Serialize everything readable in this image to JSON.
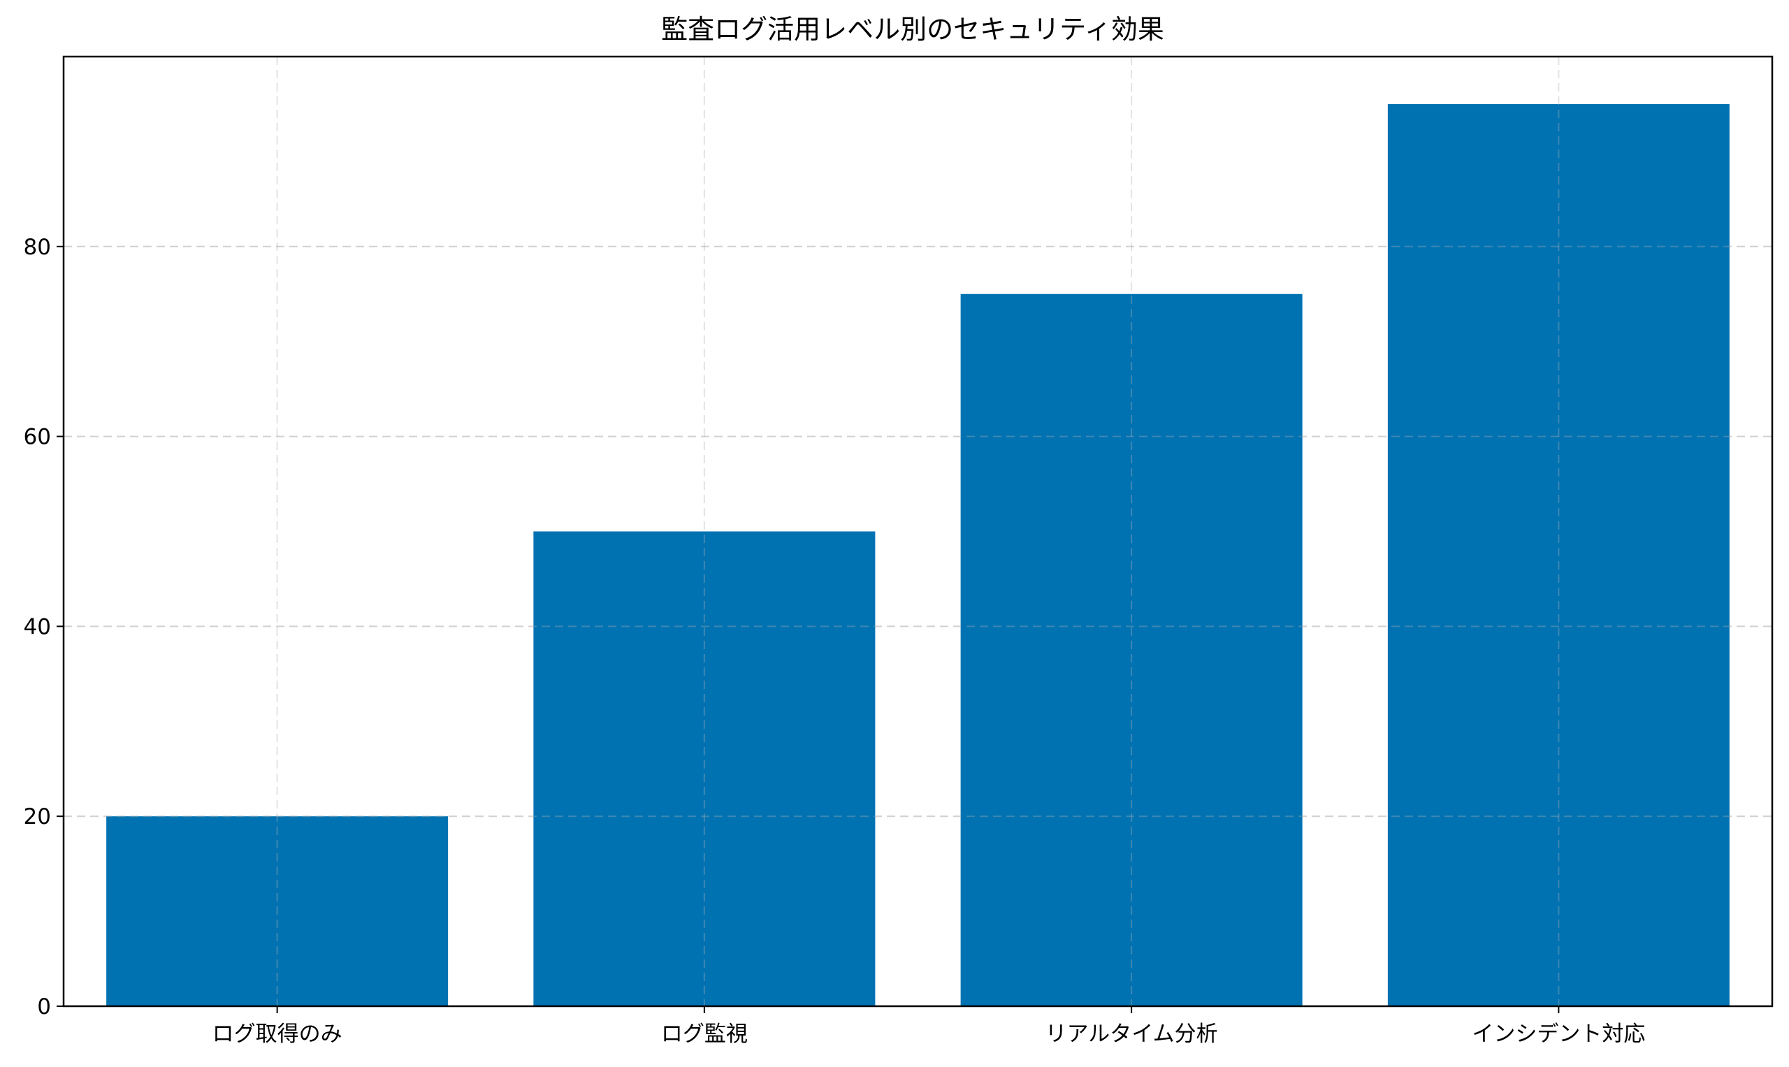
{
  "chart_data": {
    "type": "bar",
    "title": "監査ログ活用レベル別のセキュリティ効果",
    "xlabel": "",
    "ylabel": "",
    "categories": [
      "ログ取得のみ",
      "ログ監視",
      "リアルタイム分析",
      "インシデント対応"
    ],
    "values": [
      20,
      50,
      75,
      95
    ],
    "ylim": [
      0,
      100
    ],
    "yticks": [
      0,
      20,
      40,
      60,
      80
    ],
    "grid": true,
    "bar_color": "#0072b2"
  }
}
